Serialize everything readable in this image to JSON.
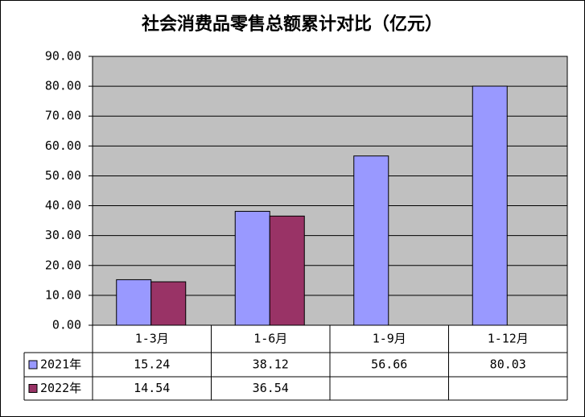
{
  "chart_data": {
    "type": "bar",
    "title": "社会消费品零售总额累计对比（亿元）",
    "categories": [
      "1-3月",
      "1-6月",
      "1-9月",
      "1-12月"
    ],
    "series": [
      {
        "name": "2021年",
        "color": "#9999ff",
        "values": [
          15.24,
          38.12,
          56.66,
          80.03
        ]
      },
      {
        "name": "2022年",
        "color": "#993366",
        "values": [
          14.54,
          36.54,
          null,
          null
        ]
      }
    ],
    "ylim": [
      0,
      90
    ],
    "yticks": [
      {
        "value": 0,
        "label": "0.00"
      },
      {
        "value": 10,
        "label": "10.00"
      },
      {
        "value": 20,
        "label": "20.00"
      },
      {
        "value": 30,
        "label": "30.00"
      },
      {
        "value": 40,
        "label": "40.00"
      },
      {
        "value": 50,
        "label": "50.00"
      },
      {
        "value": 60,
        "label": "60.00"
      },
      {
        "value": 70,
        "label": "70.00"
      },
      {
        "value": 80,
        "label": "80.00"
      },
      {
        "value": 90,
        "label": "90.00"
      }
    ],
    "grid": true,
    "background": "#c0c0c0"
  }
}
